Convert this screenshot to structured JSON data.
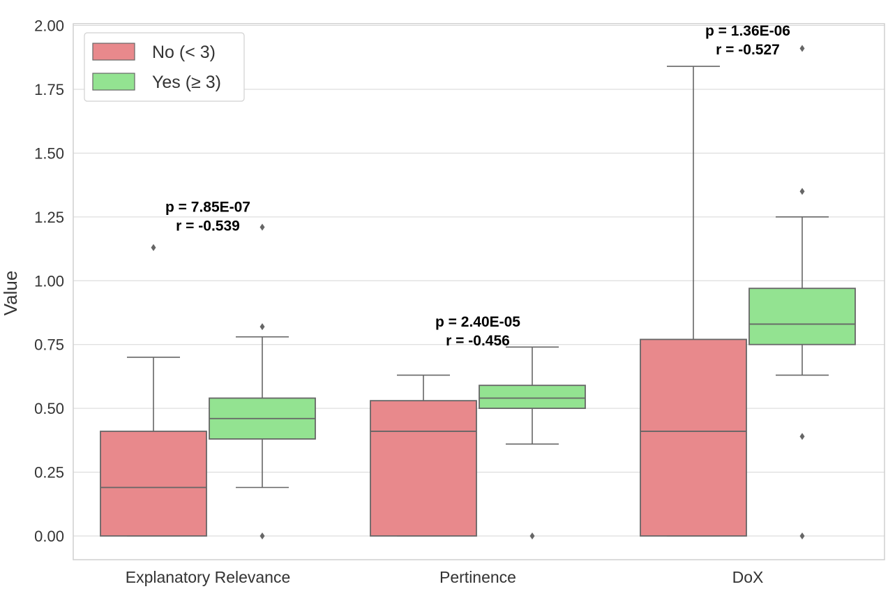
{
  "chart_data": {
    "type": "boxplot",
    "title": "",
    "xlabel": "",
    "ylabel": "Value",
    "ylim": [
      -0.09,
      2.0
    ],
    "yticks": [
      "0.00",
      "0.25",
      "0.50",
      "0.75",
      "1.00",
      "1.25",
      "1.50",
      "1.75",
      "2.00"
    ],
    "grid": true,
    "legend_placement": "top-left",
    "categories": [
      "Explanatory Relevance",
      "Pertinence",
      "DoX"
    ],
    "series": [
      {
        "name": "No (< 3)",
        "color": "#e8898c",
        "boxes": [
          {
            "whisker_low": 0.0,
            "q1": 0.0,
            "median": 0.19,
            "q3": 0.41,
            "whisker_high": 0.7,
            "outliers": [
              1.13
            ]
          },
          {
            "whisker_low": 0.0,
            "q1": 0.0,
            "median": 0.41,
            "q3": 0.53,
            "whisker_high": 0.63,
            "outliers": []
          },
          {
            "whisker_low": 0.0,
            "q1": 0.0,
            "median": 0.41,
            "q3": 0.77,
            "whisker_high": 1.84,
            "outliers": []
          }
        ]
      },
      {
        "name": "Yes (≥ 3)",
        "color": "#93e391",
        "boxes": [
          {
            "whisker_low": 0.19,
            "q1": 0.38,
            "median": 0.46,
            "q3": 0.54,
            "whisker_high": 0.78,
            "outliers": [
              0.0,
              0.82,
              1.21
            ]
          },
          {
            "whisker_low": 0.36,
            "q1": 0.5,
            "median": 0.54,
            "q3": 0.59,
            "whisker_high": 0.74,
            "outliers": [
              0.0
            ]
          },
          {
            "whisker_low": 0.63,
            "q1": 0.75,
            "median": 0.83,
            "q3": 0.97,
            "whisker_high": 1.25,
            "outliers": [
              0.0,
              0.39,
              1.35,
              1.91
            ]
          }
        ]
      }
    ],
    "annotations": [
      {
        "category": "Explanatory Relevance",
        "p": "p = 7.85E-07",
        "r": "r = -0.539",
        "y": 1.27
      },
      {
        "category": "Pertinence",
        "p": "p = 2.40E-05",
        "r": "r = -0.456",
        "y": 0.82
      },
      {
        "category": "DoX",
        "p": "p = 1.36E-06",
        "r": "r = -0.527",
        "y": 1.96
      }
    ]
  }
}
